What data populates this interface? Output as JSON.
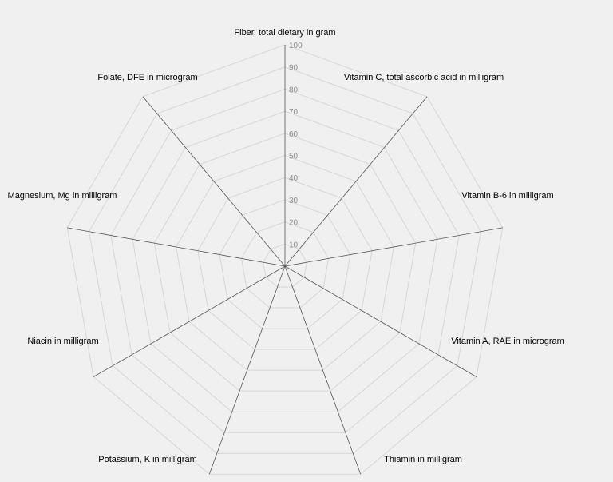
{
  "chart_data": {
    "type": "radar",
    "axes": [
      "Fiber, total dietary in gram",
      "Vitamin C, total ascorbic acid in milligram",
      "Vitamin B-6 in milligram",
      "Vitamin A, RAE in microgram",
      "Thiamin in milligram",
      "Potassium, K in milligram",
      "Niacin in milligram",
      "Magnesium, Mg in milligram",
      "Folate, DFE in microgram"
    ],
    "ticks": [
      "10",
      "20",
      "30",
      "40",
      "50",
      "60",
      "70",
      "80",
      "90",
      "100"
    ],
    "rmin": 0,
    "rmax": 100,
    "tick_values": [
      10,
      20,
      30,
      40,
      50,
      60,
      70,
      80,
      90,
      100
    ],
    "series": [],
    "grid": true,
    "legend": "none"
  },
  "colors": {
    "background": "#f0f0f0",
    "grid": "#d6d6d6",
    "spoke": "#555555",
    "tick_text": "#8c8c8c",
    "label_text": "#000000"
  }
}
